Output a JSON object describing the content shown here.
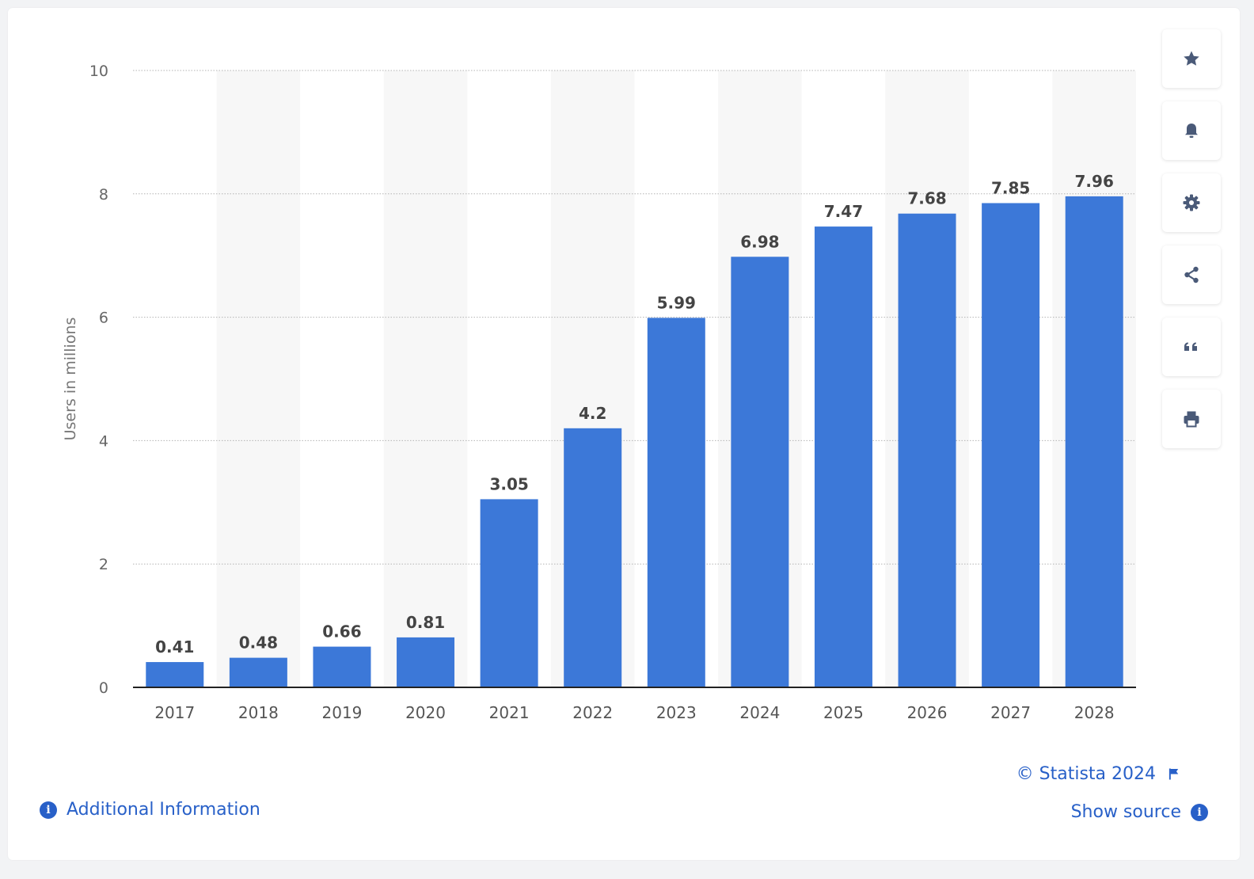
{
  "chart_data": {
    "type": "bar",
    "categories": [
      "2017",
      "2018",
      "2019",
      "2020",
      "2021",
      "2022",
      "2023",
      "2024",
      "2025",
      "2026",
      "2027",
      "2028"
    ],
    "values": [
      0.41,
      0.48,
      0.66,
      0.81,
      3.05,
      4.2,
      5.99,
      6.98,
      7.47,
      7.68,
      7.85,
      7.96
    ],
    "title": "",
    "xlabel": "",
    "ylabel": "Users in millions",
    "ylim": [
      0,
      10
    ],
    "yticks": [
      0,
      2,
      4,
      6,
      8,
      10
    ],
    "grid": true,
    "bar_color": "#3c78d8",
    "band_color": "#f7f7f7"
  },
  "toolbar": {
    "items": [
      {
        "icon": "star-icon"
      },
      {
        "icon": "bell-icon"
      },
      {
        "icon": "gear-icon"
      },
      {
        "icon": "share-icon"
      },
      {
        "icon": "quote-icon"
      },
      {
        "icon": "print-icon"
      }
    ],
    "accent": "#4a5a78"
  },
  "footer": {
    "copyright": "© Statista 2024",
    "show_source": "Show source",
    "additional_info": "Additional Information",
    "link_color": "#2860c8"
  }
}
